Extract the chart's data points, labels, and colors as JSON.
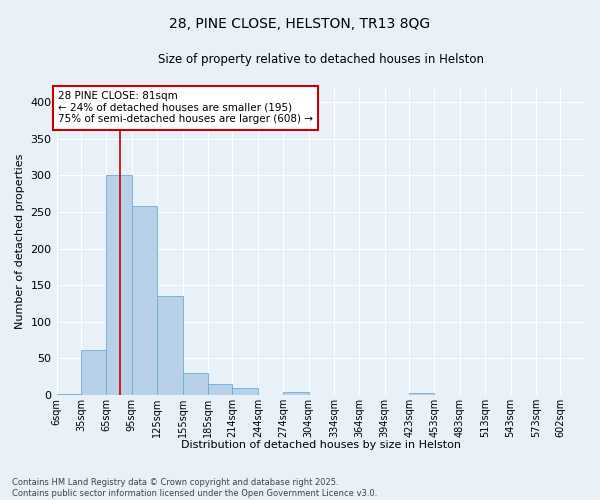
{
  "title": "28, PINE CLOSE, HELSTON, TR13 8QG",
  "subtitle": "Size of property relative to detached houses in Helston",
  "xlabel": "Distribution of detached houses by size in Helston",
  "ylabel": "Number of detached properties",
  "bar_values": [
    2,
    62,
    300,
    258,
    135,
    30,
    15,
    10,
    0,
    4,
    0,
    0,
    0,
    0,
    3,
    0,
    0,
    0,
    0,
    0,
    0
  ],
  "bar_labels": [
    "6sqm",
    "35sqm",
    "65sqm",
    "95sqm",
    "125sqm",
    "155sqm",
    "185sqm",
    "214sqm",
    "244sqm",
    "274sqm",
    "304sqm",
    "334sqm",
    "364sqm",
    "394sqm",
    "423sqm",
    "453sqm",
    "483sqm",
    "513sqm",
    "543sqm",
    "573sqm",
    "602sqm"
  ],
  "bin_edges": [
    6,
    35,
    65,
    95,
    125,
    155,
    185,
    214,
    244,
    274,
    304,
    334,
    364,
    394,
    423,
    453,
    483,
    513,
    543,
    573,
    602
  ],
  "bar_color": "#b8d0e8",
  "bar_edge_color": "#6aaed6",
  "red_line_x": 81,
  "annotation_text": "28 PINE CLOSE: 81sqm\n← 24% of detached houses are smaller (195)\n75% of semi-detached houses are larger (608) →",
  "annotation_box_color": "#ffffff",
  "annotation_box_edge": "#cc0000",
  "ylim": [
    0,
    420
  ],
  "yticks": [
    0,
    50,
    100,
    150,
    200,
    250,
    300,
    350,
    400
  ],
  "bg_color": "#e8f0f8",
  "grid_color": "#ffffff",
  "footer_line1": "Contains HM Land Registry data © Crown copyright and database right 2025.",
  "footer_line2": "Contains public sector information licensed under the Open Government Licence v3.0."
}
